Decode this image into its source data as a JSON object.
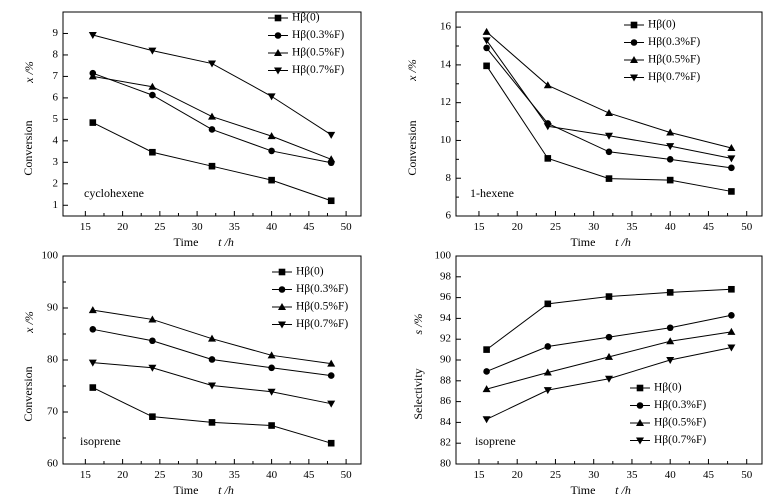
{
  "chart_data": [
    {
      "type": "line",
      "x": [
        16,
        24,
        32,
        40,
        48
      ],
      "xlabel": "Time",
      "xlabel_var": "t /h",
      "ylabel": "Conversion",
      "ylabel_var": "x /%",
      "xlim": [
        12,
        52
      ],
      "ylim": [
        0.5,
        10
      ],
      "xticks": [
        "15",
        "20",
        "25",
        "30",
        "35",
        "40",
        "45",
        "50"
      ],
      "yticks": [
        "1",
        "2",
        "3",
        "4",
        "5",
        "6",
        "7",
        "8",
        "9"
      ],
      "annotation": "cyclohexene",
      "legend_position": "top-right",
      "series": [
        {
          "name": "Hβ(0)",
          "marker": "square",
          "values": [
            4.85,
            3.47,
            2.82,
            2.17,
            1.21
          ]
        },
        {
          "name": "Hβ(0.3%F)",
          "marker": "circle",
          "values": [
            7.15,
            6.13,
            4.53,
            3.53,
            2.98
          ]
        },
        {
          "name": "Hβ(0.5%F)",
          "marker": "triangle-up",
          "values": [
            7.0,
            6.52,
            5.13,
            4.22,
            3.14
          ]
        },
        {
          "name": "Hβ(0.7%F)",
          "marker": "triangle-down",
          "values": [
            8.93,
            8.2,
            7.6,
            6.07,
            4.28
          ]
        }
      ]
    },
    {
      "type": "line",
      "x": [
        16,
        24,
        32,
        40,
        48
      ],
      "xlabel": "Time",
      "xlabel_var": "t /h",
      "ylabel": "Conversion",
      "ylabel_var": "x /%",
      "xlim": [
        12,
        52
      ],
      "ylim": [
        6,
        16.8
      ],
      "xticks": [
        "15",
        "20",
        "25",
        "30",
        "35",
        "40",
        "45",
        "50"
      ],
      "yticks": [
        "6",
        "8",
        "10",
        "12",
        "14",
        "16"
      ],
      "annotation": "1-hexene",
      "legend_position": "top-right",
      "series": [
        {
          "name": "Hβ(0)",
          "marker": "square",
          "values": [
            13.95,
            9.05,
            7.98,
            7.9,
            7.3
          ]
        },
        {
          "name": "Hβ(0.3%F)",
          "marker": "circle",
          "values": [
            14.9,
            10.9,
            9.4,
            9.0,
            8.55
          ]
        },
        {
          "name": "Hβ(0.5%F)",
          "marker": "triangle-up",
          "values": [
            15.75,
            12.92,
            11.45,
            10.42,
            9.6
          ]
        },
        {
          "name": "Hβ(0.7%F)",
          "marker": "triangle-down",
          "values": [
            15.3,
            10.75,
            10.25,
            9.7,
            9.05
          ]
        }
      ]
    },
    {
      "type": "line",
      "x": [
        16,
        24,
        32,
        40,
        48
      ],
      "xlabel": "Time",
      "xlabel_var": "t /h",
      "ylabel": "Conversion",
      "ylabel_var": "x /%",
      "xlim": [
        12,
        52
      ],
      "ylim": [
        60,
        100
      ],
      "xticks": [
        "15",
        "20",
        "25",
        "30",
        "35",
        "40",
        "45",
        "50"
      ],
      "yticks": [
        "60",
        "70",
        "80",
        "90",
        "100"
      ],
      "annotation": "isoprene",
      "legend_position": "top-right",
      "series": [
        {
          "name": "Hβ(0)",
          "marker": "square",
          "values": [
            74.7,
            69.1,
            68.0,
            67.4,
            64.0
          ]
        },
        {
          "name": "Hβ(0.3%F)",
          "marker": "circle",
          "values": [
            85.9,
            83.7,
            80.1,
            78.5,
            77.0
          ]
        },
        {
          "name": "Hβ(0.5%F)",
          "marker": "triangle-up",
          "values": [
            89.6,
            87.8,
            84.1,
            80.9,
            79.3
          ]
        },
        {
          "name": "Hβ(0.7%F)",
          "marker": "triangle-down",
          "values": [
            79.5,
            78.5,
            75.1,
            73.9,
            71.6
          ]
        }
      ]
    },
    {
      "type": "line",
      "x": [
        16,
        24,
        32,
        40,
        48
      ],
      "xlabel": "Time",
      "xlabel_var": "t /h",
      "ylabel": "Selectivity",
      "ylabel_var": "s /%",
      "xlim": [
        12,
        52
      ],
      "ylim": [
        80,
        100
      ],
      "xticks": [
        "15",
        "20",
        "25",
        "30",
        "35",
        "40",
        "45",
        "50"
      ],
      "yticks": [
        "80",
        "82",
        "84",
        "86",
        "88",
        "90",
        "92",
        "94",
        "96",
        "98",
        "100"
      ],
      "annotation": "isoprene",
      "legend_position": "bottom-right",
      "series": [
        {
          "name": "Hβ(0)",
          "marker": "square",
          "values": [
            91.0,
            95.4,
            96.1,
            96.5,
            96.8
          ]
        },
        {
          "name": "Hβ(0.3%F)",
          "marker": "circle",
          "values": [
            88.9,
            91.3,
            92.2,
            93.1,
            94.3
          ]
        },
        {
          "name": "Hβ(0.5%F)",
          "marker": "triangle-up",
          "values": [
            87.2,
            88.8,
            90.3,
            91.8,
            92.7
          ]
        },
        {
          "name": "Hβ(0.7%F)",
          "marker": "triangle-down",
          "values": [
            84.3,
            87.1,
            88.2,
            90.0,
            91.2
          ]
        }
      ]
    }
  ]
}
